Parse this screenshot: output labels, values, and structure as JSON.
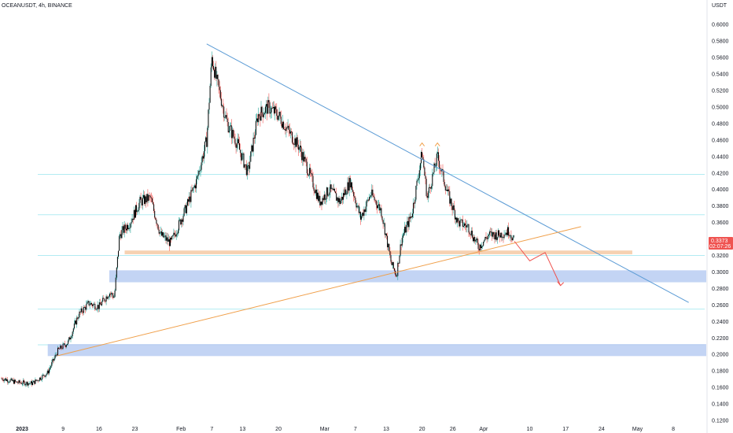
{
  "header": {
    "symbol_line": "OCEANUSDT, 4h, BINANCE"
  },
  "axis": {
    "currency": "USDT",
    "y_ticks": [
      "0.6000",
      "0.5800",
      "0.5600",
      "0.5400",
      "0.5200",
      "0.5000",
      "0.4800",
      "0.4600",
      "0.4400",
      "0.4200",
      "0.4000",
      "0.3800",
      "0.3600",
      "0.3400",
      "0.3200",
      "0.3000",
      "0.2800",
      "0.2600",
      "0.2400",
      "0.2200",
      "0.2000",
      "0.1800",
      "0.1600",
      "0.1400",
      "0.1200"
    ],
    "x_ticks": [
      "2023",
      "9",
      "16",
      "23",
      "Feb",
      "7",
      "13",
      "20",
      "Mar",
      "7",
      "13",
      "20",
      "26",
      "Apr",
      "10",
      "17",
      "24",
      "May",
      "8"
    ]
  },
  "price_tag": {
    "price": "0.3373",
    "timer": "02:07:26",
    "color": "#ef5350"
  },
  "colors": {
    "up": "#26a69a",
    "down": "#ef5350",
    "candle_body": "#000000",
    "trendline_down": "#5b9bd5",
    "trendline_up": "#f0a04b",
    "resistance_zone": "#f5c9a4",
    "support_zone": "#b9ccf2",
    "horizontal_levels": "#b2ebf2",
    "projection_arrow": "#ef5350"
  },
  "chart_data": {
    "type": "candlestick",
    "title": "OCEANUSDT, 4h, BINANCE",
    "ylabel": "USDT",
    "y_scale": "linear",
    "ylim": [
      0.12,
      0.61
    ],
    "grid": false,
    "x_range": [
      "2022-12-28",
      "2023-05-11"
    ],
    "price_path": [
      [
        "2022-12-28",
        0.171
      ],
      [
        "2022-12-31",
        0.166
      ],
      [
        "2023-01-03",
        0.165
      ],
      [
        "2023-01-06",
        0.178
      ],
      [
        "2023-01-08",
        0.205
      ],
      [
        "2023-01-10",
        0.215
      ],
      [
        "2023-01-12",
        0.248
      ],
      [
        "2023-01-14",
        0.262
      ],
      [
        "2023-01-16",
        0.258
      ],
      [
        "2023-01-18",
        0.275
      ],
      [
        "2023-01-19",
        0.27
      ],
      [
        "2023-01-20",
        0.345
      ],
      [
        "2023-01-22",
        0.36
      ],
      [
        "2023-01-24",
        0.385
      ],
      [
        "2023-01-26",
        0.39
      ],
      [
        "2023-01-28",
        0.345
      ],
      [
        "2023-01-30",
        0.335
      ],
      [
        "2023-02-02",
        0.378
      ],
      [
        "2023-02-04",
        0.41
      ],
      [
        "2023-02-06",
        0.46
      ],
      [
        "2023-02-07",
        0.56
      ],
      [
        "2023-02-08",
        0.53
      ],
      [
        "2023-02-10",
        0.48
      ],
      [
        "2023-02-12",
        0.455
      ],
      [
        "2023-02-14",
        0.42
      ],
      [
        "2023-02-16",
        0.49
      ],
      [
        "2023-02-18",
        0.5
      ],
      [
        "2023-02-20",
        0.49
      ],
      [
        "2023-02-22",
        0.47
      ],
      [
        "2023-02-24",
        0.452
      ],
      [
        "2023-02-26",
        0.42
      ],
      [
        "2023-02-28",
        0.385
      ],
      [
        "2023-03-02",
        0.4
      ],
      [
        "2023-03-04",
        0.385
      ],
      [
        "2023-03-06",
        0.41
      ],
      [
        "2023-03-08",
        0.365
      ],
      [
        "2023-03-10",
        0.395
      ],
      [
        "2023-03-12",
        0.375
      ],
      [
        "2023-03-14",
        0.31
      ],
      [
        "2023-03-15",
        0.296
      ],
      [
        "2023-03-16",
        0.34
      ],
      [
        "2023-03-18",
        0.37
      ],
      [
        "2023-03-20",
        0.445
      ],
      [
        "2023-03-21",
        0.39
      ],
      [
        "2023-03-23",
        0.44
      ],
      [
        "2023-03-25",
        0.395
      ],
      [
        "2023-03-27",
        0.36
      ],
      [
        "2023-03-29",
        0.355
      ],
      [
        "2023-03-31",
        0.33
      ],
      [
        "2023-04-02",
        0.345
      ],
      [
        "2023-04-04",
        0.345
      ],
      [
        "2023-04-06",
        0.35
      ],
      [
        "2023-04-07",
        0.337
      ]
    ],
    "last_price": 0.3373,
    "levels": [
      0.4183,
      0.3694,
      0.32,
      0.255,
      0.2117
    ],
    "zones": [
      {
        "kind": "resistance",
        "from": 0.3215,
        "to": 0.326
      },
      {
        "kind": "support",
        "from": 0.2875,
        "to": 0.302
      },
      {
        "kind": "support",
        "from": 0.198,
        "to": 0.2125
      }
    ],
    "trendlines": [
      {
        "kind": "descending",
        "from": [
          "2023-02-06",
          0.5765
        ],
        "to": [
          "2023-05-11",
          0.263
        ]
      },
      {
        "kind": "ascending",
        "from": [
          "2023-01-08",
          0.1985
        ],
        "to": [
          "2023-04-20",
          0.355
        ]
      }
    ],
    "projection": [
      [
        "2023-04-07",
        0.3373
      ],
      [
        "2023-04-10",
        0.3135
      ],
      [
        "2023-04-13",
        0.3235
      ],
      [
        "2023-04-16",
        0.2835
      ]
    ]
  }
}
